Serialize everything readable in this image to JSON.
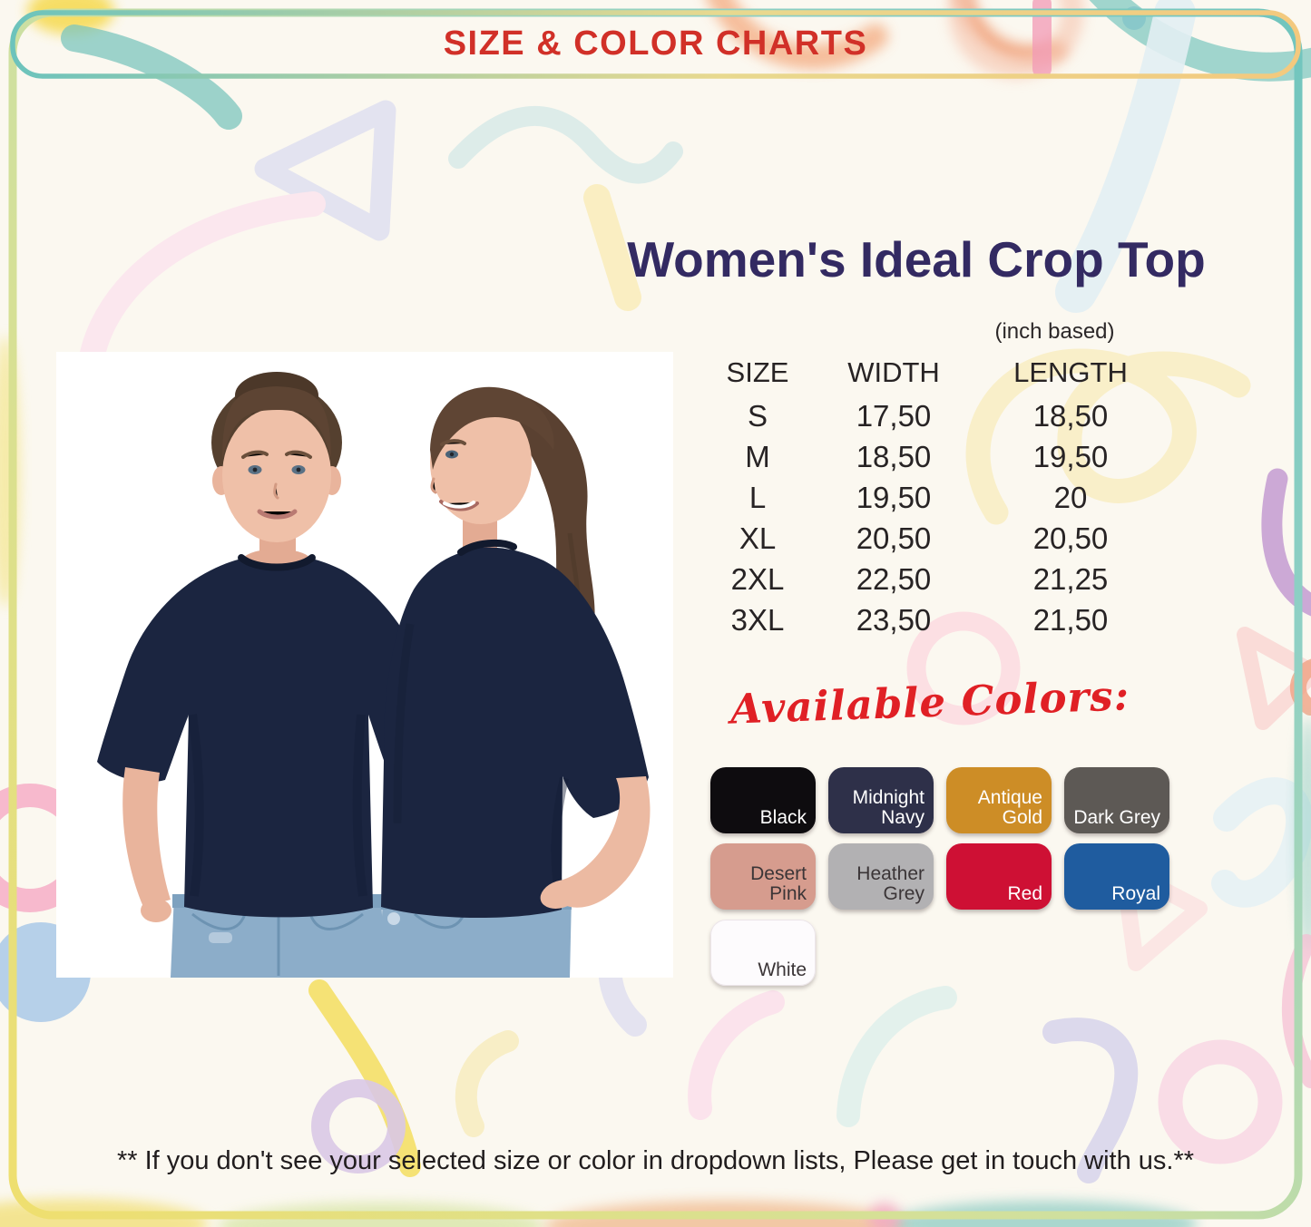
{
  "header": {
    "title": "SIZE & COLOR CHARTS",
    "title_color": "#d13028"
  },
  "product": {
    "title": "Women's Ideal Crop Top",
    "title_color": "#332a62",
    "unit_note": "(inch based)"
  },
  "photo": {
    "alt": "Front view and side view of a woman wearing a navy crop top t-shirt with blue jeans",
    "shirt_color": "#1b2540"
  },
  "size_table": {
    "columns": [
      "SIZE",
      "WIDTH",
      "LENGTH"
    ],
    "rows": [
      {
        "size": "S",
        "width": "17,50",
        "length": "18,50"
      },
      {
        "size": "M",
        "width": "18,50",
        "length": "19,50"
      },
      {
        "size": "L",
        "width": "19,50",
        "length": "20"
      },
      {
        "size": "XL",
        "width": "20,50",
        "length": "20,50"
      },
      {
        "size": "2XL",
        "width": "22,50",
        "length": "21,25"
      },
      {
        "size": "3XL",
        "width": "23,50",
        "length": "21,50"
      }
    ]
  },
  "colors_section": {
    "heading": "Available Colors:",
    "heading_color": "#e02025",
    "swatches": [
      {
        "name": "Black",
        "label_lines": [
          "Black"
        ],
        "hex": "#0e0c0f",
        "text_color": "#ffffff"
      },
      {
        "name": "Midnight Navy",
        "label_lines": [
          "Midnight",
          "Navy"
        ],
        "hex": "#2e3049",
        "text_color": "#ffffff"
      },
      {
        "name": "Antique Gold",
        "label_lines": [
          "Antique",
          "Gold"
        ],
        "hex": "#cd8d26",
        "text_color": "#ffffff"
      },
      {
        "name": "Dark Grey",
        "label_lines": [
          "Dark Grey"
        ],
        "hex": "#5d5955",
        "text_color": "#ffffff"
      },
      {
        "name": "Desert Pink",
        "label_lines": [
          "Desert",
          "Pink"
        ],
        "hex": "#d69c8e",
        "text_color": "#3b3537"
      },
      {
        "name": "Heather Grey",
        "label_lines": [
          "Heather",
          "Grey"
        ],
        "hex": "#b2b1b3",
        "text_color": "#3b3537"
      },
      {
        "name": "Red",
        "label_lines": [
          "Red"
        ],
        "hex": "#ce1034",
        "text_color": "#ffffff"
      },
      {
        "name": "Royal",
        "label_lines": [
          "Royal"
        ],
        "hex": "#1f5c9f",
        "text_color": "#ffffff"
      },
      {
        "name": "White",
        "label_lines": [
          "White"
        ],
        "hex": "#fdfbfd",
        "text_color": "#3b3537"
      }
    ]
  },
  "footer": {
    "note": "** If you don't see your selected size or color in dropdown lists, Please get in touch with us.**"
  }
}
